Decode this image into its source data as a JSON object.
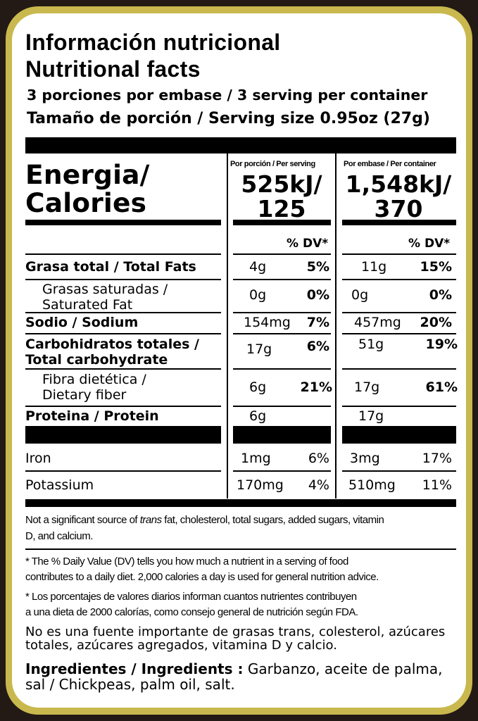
{
  "title": {
    "es": "Información nutricional",
    "en": "Nutritional facts"
  },
  "servings_line": "3 porciones por embase  / 3 serving per container",
  "serving_size_line": "Tamaño de porción / Serving size 0.95oz (27g)",
  "energy": {
    "label_line1": "Energia/",
    "label_line2": "Calories",
    "per_serving_header": "Por porción / Per serving",
    "per_container_header": "Por embase / Per container",
    "per_serving_kj": "525kJ/",
    "per_serving_cal": "125",
    "per_container_kj": "1,548kJ/",
    "per_container_cal": "370"
  },
  "dv_header": "% DV*",
  "nutrients": [
    {
      "label": "Grasa total / Total Fats",
      "serving_amount": "4g",
      "serving_dv": "5%",
      "container_amount": "11g",
      "container_dv": "15%"
    },
    {
      "label_line1": "Grasas saturadas /",
      "label_line2": "Saturated Fat",
      "serving_amount": "0g",
      "serving_dv": "0%",
      "container_amount": "0g",
      "container_dv": "0%"
    },
    {
      "label": "Sodio / Sodium",
      "serving_amount": "154mg",
      "serving_dv": "7%",
      "container_amount": "457mg",
      "container_dv": "20%"
    },
    {
      "label_line1": "Carbohidratos totales /",
      "label_line2": "Total carbohydrate",
      "serving_amount": "17g",
      "serving_dv": "6%",
      "container_amount": "51g",
      "container_dv": "19%"
    },
    {
      "label_line1": "Fibra dietética /",
      "label_line2": "Dietary fiber",
      "serving_amount": "6g",
      "serving_dv": "21%",
      "container_amount": "17g",
      "container_dv": "61%"
    },
    {
      "label": "Proteina / Protein",
      "serving_amount": "6g",
      "container_amount": "17g"
    }
  ],
  "minerals": [
    {
      "label": "Iron",
      "serving_amount": "1mg",
      "serving_dv": "6%",
      "container_amount": "3mg",
      "container_dv": "17%"
    },
    {
      "label": "Potassium",
      "serving_amount": "170mg",
      "serving_dv": "4%",
      "container_amount": "510mg",
      "container_dv": "11%"
    }
  ],
  "not_significant": {
    "before": "Not a significant source of ",
    "italic": "trans",
    "after": " fat, cholesterol, total sugars, added sugars, vitamin",
    "line2": "D, and calcium."
  },
  "footnote_en": {
    "line1": "* The % Daily Value (DV) tells you how much a nutrient in a serving of food",
    "line2": "contributes to a daily diet. 2,000 calories a day is used for general nutrition advice."
  },
  "footnote_es": {
    "line1": "* Los porcentajes de valores diarios informan cuantos nutrientes contribuyen",
    "line2": "a una dieta de 2000 calorías, como consejo general de nutrición según FDA."
  },
  "not_significant_es": {
    "line1": "No es una fuente importante de grasas trans, colesterol, azúcares",
    "line2": "totales, azúcares agregados, vitamina D y calcio."
  },
  "ingredients": {
    "label": "Ingredientes / Ingredients :",
    "text_line1": " Garbanzo, aceite de palma,",
    "text_line2": "sal / Chickpeas, palm oil, salt."
  },
  "colors": {
    "frame": "#c9b84d",
    "background": "#231a16",
    "panel": "#ffffff",
    "ink": "#000000"
  }
}
